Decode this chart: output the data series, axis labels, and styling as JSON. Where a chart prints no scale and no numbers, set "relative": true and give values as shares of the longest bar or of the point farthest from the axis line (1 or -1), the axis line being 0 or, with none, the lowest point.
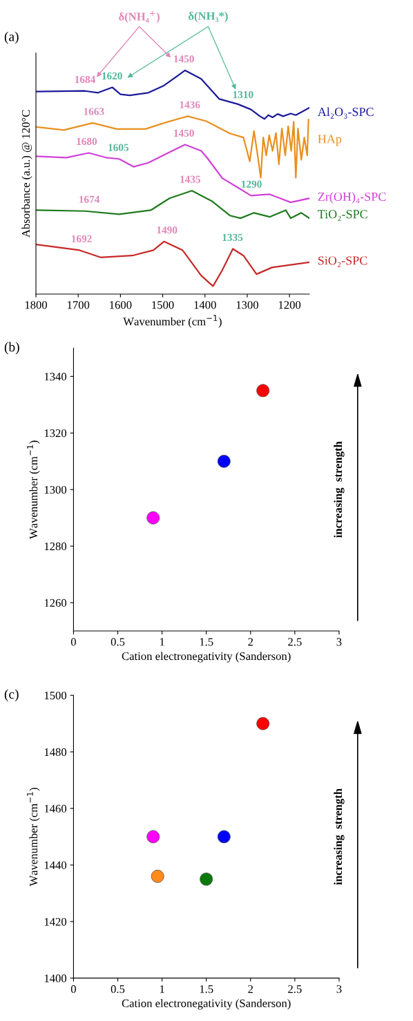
{
  "chart_data": [
    {
      "type": "line",
      "title": "(a)",
      "xlabel": "Wavenumber (cm$^{−1}$)",
      "ylabel": "Absorbance (a.u.) @ 120°C",
      "relative": true,
      "tick_labels": "x",
      "xlim": [
        1800,
        1153
      ],
      "xticks": [
        1800,
        1700,
        1600,
        1500,
        1400,
        1300,
        1200
      ],
      "series": [
        {
          "name": "Al₂O₃-SPC",
          "color": "#1a1a9a",
          "x": [
            1800,
            1684,
            1653,
            1619,
            1600,
            1578,
            1534,
            1497,
            1447,
            1409,
            1366,
            1322,
            1291,
            1270,
            1259,
            1250,
            1240,
            1228,
            1215,
            1197,
            1185,
            1172,
            1153
          ],
          "values": [
            0.905,
            0.908,
            0.9,
            0.924,
            0.893,
            0.888,
            0.9,
            0.932,
            1.0,
            0.962,
            0.872,
            0.849,
            0.825,
            0.795,
            0.783,
            0.8,
            0.79,
            0.805,
            0.795,
            0.807,
            0.8,
            0.813,
            0.833
          ]
        },
        {
          "name": "HAp",
          "color": "#e8901e",
          "x": [
            1800,
            1734,
            1666,
            1609,
            1541,
            1497,
            1441,
            1397,
            1341,
            1309,
            1294,
            1284,
            1275,
            1268,
            1262,
            1255,
            1248,
            1240,
            1232,
            1225,
            1218,
            1210,
            1203,
            1196,
            1190,
            1185,
            1180,
            1172,
            1165,
            1158,
            1155
          ],
          "values": [
            0.747,
            0.733,
            0.765,
            0.738,
            0.738,
            0.765,
            0.795,
            0.773,
            0.718,
            0.7,
            0.593,
            0.729,
            0.616,
            0.52,
            0.7,
            0.62,
            0.71,
            0.64,
            0.72,
            0.58,
            0.74,
            0.62,
            0.75,
            0.64,
            0.77,
            0.52,
            0.74,
            0.6,
            0.7,
            0.62,
            0.78
          ]
        },
        {
          "name": "Zr(OH)₄-SPC",
          "color": "#d040d8",
          "x": [
            1800,
            1728,
            1675,
            1634,
            1603,
            1569,
            1534,
            1497,
            1447,
            1409,
            1394,
            1359,
            1322,
            1291,
            1247,
            1222,
            1197,
            1153
          ],
          "values": [
            0.616,
            0.61,
            0.631,
            0.61,
            0.604,
            0.569,
            0.587,
            0.622,
            0.668,
            0.64,
            0.607,
            0.518,
            0.476,
            0.44,
            0.446,
            0.428,
            0.41,
            0.428
          ]
        },
        {
          "name": "TiO₂-SPC",
          "color": "#1e7a1e",
          "x": [
            1800,
            1684,
            1603,
            1528,
            1484,
            1431,
            1384,
            1341,
            1316,
            1284,
            1247,
            1209,
            1197,
            1172,
            1153
          ],
          "values": [
            0.375,
            0.371,
            0.357,
            0.375,
            0.428,
            0.462,
            0.416,
            0.351,
            0.339,
            0.363,
            0.345,
            0.375,
            0.339,
            0.363,
            0.339
          ]
        },
        {
          "name": "SiO₂-SPC",
          "color": "#c82828",
          "x": [
            1800,
            1697,
            1647,
            1572,
            1522,
            1497,
            1453,
            1409,
            1381,
            1359,
            1334,
            1309,
            1278,
            1241,
            1153
          ],
          "values": [
            0.222,
            0.196,
            0.164,
            0.172,
            0.196,
            0.235,
            0.196,
            0.083,
            0.035,
            0.107,
            0.202,
            0.172,
            0.089,
            0.119,
            0.142
          ]
        }
      ],
      "annotations": [
        "δ(NH₄$^{+}$)",
        "δ(NH₃*)",
        {
          "text": "1684",
          "x": 1684,
          "y": 0.908
        },
        {
          "text": "1620",
          "x": 1620,
          "y": 0.924
        },
        {
          "text": "1450",
          "x": 1450,
          "y": 1.0
        },
        {
          "text": "1310",
          "x": 1310,
          "y": 0.84
        },
        {
          "text": "1663",
          "x": 1663,
          "y": 0.765
        },
        {
          "text": "1436",
          "x": 1436,
          "y": 0.795
        },
        {
          "text": "1680",
          "x": 1680,
          "y": 0.631
        },
        {
          "text": "1605",
          "x": 1605,
          "y": 0.604
        },
        {
          "text": "1450",
          "x": 1450,
          "y": 0.668
        },
        {
          "text": "1290",
          "x": 1290,
          "y": 0.44
        },
        {
          "text": "1435",
          "x": 1435,
          "y": 0.462
        },
        {
          "text": "1674",
          "x": 1674,
          "y": 0.372
        },
        {
          "text": "1692",
          "x": 1692,
          "y": 0.196
        },
        {
          "text": "1490",
          "x": 1490,
          "y": 0.235
        },
        {
          "text": "1335",
          "x": 1335,
          "y": 0.202
        }
      ]
    },
    {
      "type": "scatter",
      "title": "(b)",
      "xlabel": "Cation electronegativity (Sanderson)",
      "ylabel": "Wavenumber (cm$^{−1}$)",
      "marker": "circle",
      "xlim": [
        0,
        3
      ],
      "xticks": [
        0,
        0.5,
        1,
        1.5,
        2,
        2.5,
        3
      ],
      "ylim": [
        1250,
        1350
      ],
      "yticks": [
        1260,
        1280,
        1300,
        1320,
        1340
      ],
      "x": [
        0.9,
        1.7,
        2.14
      ],
      "values": [
        1290,
        1310,
        1335
      ],
      "colors": [
        "#ff00ff",
        "#0000ff",
        "#ff0000"
      ],
      "annotations": [
        "increasing  strength"
      ]
    },
    {
      "type": "scatter",
      "title": "(c)",
      "xlabel": "Cation electronegativity (Sanderson)",
      "ylabel": "Wavenumber (cm$^{−1}$)",
      "marker": "circle",
      "xlim": [
        0,
        3
      ],
      "xticks": [
        0,
        0.5,
        1,
        1.5,
        2,
        2.5,
        3
      ],
      "ylim": [
        1400,
        1500
      ],
      "yticks": [
        1400,
        1420,
        1440,
        1460,
        1480,
        1500
      ],
      "x": [
        0.9,
        0.95,
        1.5,
        1.7,
        2.14
      ],
      "values": [
        1450,
        1436,
        1435,
        1450,
        1490
      ],
      "colors": [
        "#ff00ff",
        "#ff8c1a",
        "#0a7a0a",
        "#0000ff",
        "#ff0000"
      ],
      "annotations": [
        "increasing  strength"
      ]
    }
  ]
}
